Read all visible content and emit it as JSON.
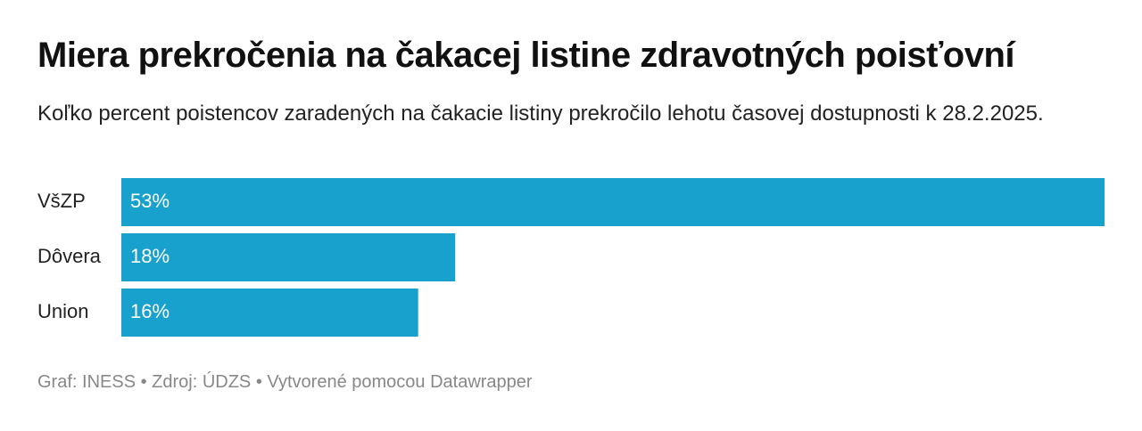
{
  "chart_data": {
    "type": "bar",
    "orientation": "horizontal",
    "title": "Miera prekročenia na čakacej listine zdravotných poisťovní",
    "subtitle": "Koľko percent poistencov zaradených na čakacie listiny prekročilo lehotu časovej dostupnosti k 28.2.2025.",
    "categories": [
      "VšZP",
      "Dôvera",
      "Union"
    ],
    "values": [
      53,
      18,
      16
    ],
    "value_labels": [
      "53%",
      "18%",
      "16%"
    ],
    "color": "#18a1cd",
    "footer": "Graf: INESS • Zdroj: ÚDZS • Vytvorené pomocou Datawrapper"
  }
}
